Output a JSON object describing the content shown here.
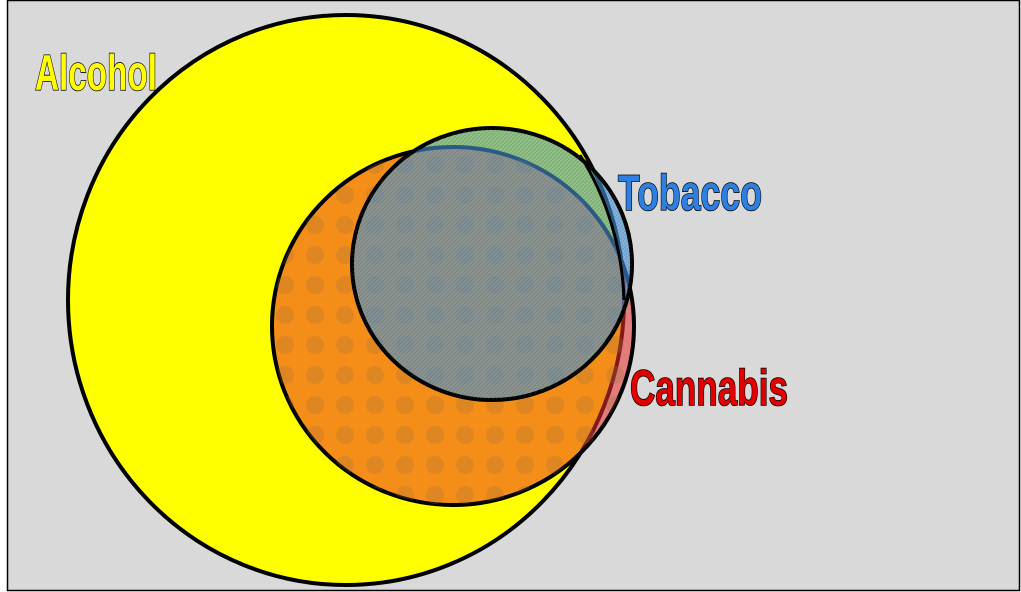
{
  "sets": [
    {
      "label": "Alcohol"
    },
    {
      "label": "Tobacco"
    },
    {
      "label": "Cannabis"
    }
  ]
}
